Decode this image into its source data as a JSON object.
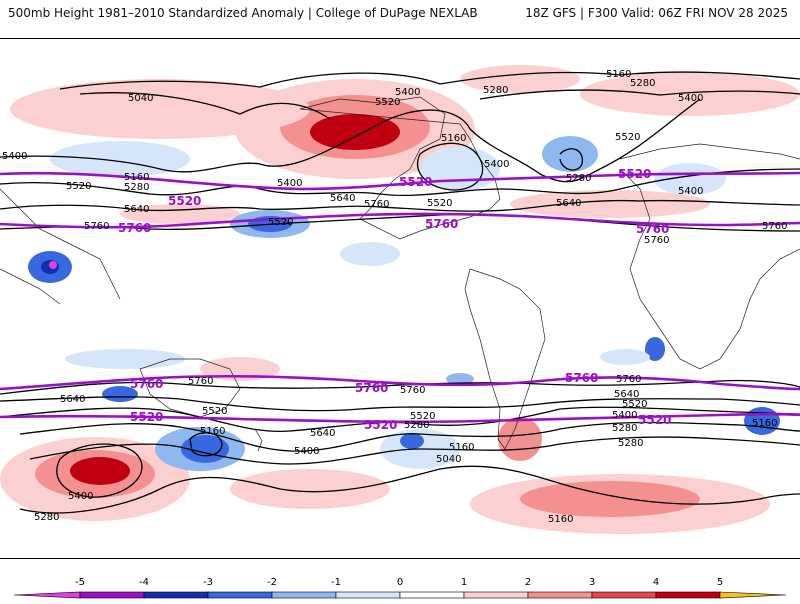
{
  "header": {
    "title": "500mb Height 1981–2010 Standardized Anomaly | College of DuPage NEXLAB",
    "run_info": "18Z GFS | F300 Valid: 06Z FRI NOV 28 2025"
  },
  "map": {
    "contour_labels": {
      "c5160_top": "5160",
      "c5280_top": "5280",
      "c5400_top": "5400",
      "c5040_nw": "5040",
      "c5400_west": "5400",
      "c5160_west": "5160",
      "c5520_west": "5520",
      "c5280_west": "5280",
      "c5640_west": "5640",
      "c5760_west": "5760",
      "c5520_mid": "5520",
      "c5400_mid": "5400",
      "c5520_npac": "5520",
      "c5640_npac": "5640",
      "c5760_npac": "5760",
      "c5400_ak": "5400",
      "c5520_ak": "5520",
      "c5160_can": "5160",
      "c5280_can": "5280",
      "c5400_can": "5400",
      "c5520_us": "5520",
      "c5280_atl": "5280",
      "c5640_atl": "5640",
      "c5520_eu": "5520",
      "c5400_eu": "5400",
      "c5280_eu": "5280",
      "c5400_ne": "5400",
      "c5160_ne": "5160",
      "c5760_east": "5760",
      "c5640_sh_w": "5640",
      "c5760_sh_w": "5760",
      "c5520_sh_w": "5520",
      "c5160_sh_w": "5160",
      "c5400_sh_w": "5400",
      "c5280_sh_w": "5280",
      "c5760_sh_m": "5760",
      "c5640_sh_m": "5640",
      "c5520_sh_m": "5520",
      "c5400_sh_m": "5400",
      "c5280_sh_m": "5280",
      "c5160_sh_m": "5160",
      "c5040_sh_m": "5040",
      "c5760_sh_e": "5760",
      "c5640_sh_e": "5640",
      "c5520_sh_e": "5520",
      "c5400_sh_e": "5400",
      "c5280_sh_e": "5280",
      "c5160_sh_e": "5160",
      "c5280_sh_e2": "5280",
      "c5160_sh_far": "5160",
      "c5160_sh_bottom": "5160"
    },
    "purple_labels": {
      "p5520_nw": "5520",
      "p5520_na": "5520",
      "p5520_eu": "5520",
      "p5760_nw": "5760",
      "p5760_na": "5760",
      "p5760_eu": "5760",
      "p5760_sw": "5760",
      "p5760_sm": "5760",
      "p5760_se": "5760",
      "p5520_sw": "5520",
      "p5520_sm": "5520",
      "p5520_se": "5520"
    }
  },
  "legend": {
    "ticks": [
      "-5",
      "-4",
      "-3",
      "-2",
      "-1",
      "0",
      "1",
      "2",
      "3",
      "4",
      "5"
    ],
    "colors": [
      "#e040e0",
      "#9a10c8",
      "#1030b0",
      "#3868e0",
      "#90b8f0",
      "#d6e6fa",
      "#ffffff",
      "#fcd0d0",
      "#f49090",
      "#e44848",
      "#c00010",
      "#f09000",
      "#f8c020"
    ]
  }
}
